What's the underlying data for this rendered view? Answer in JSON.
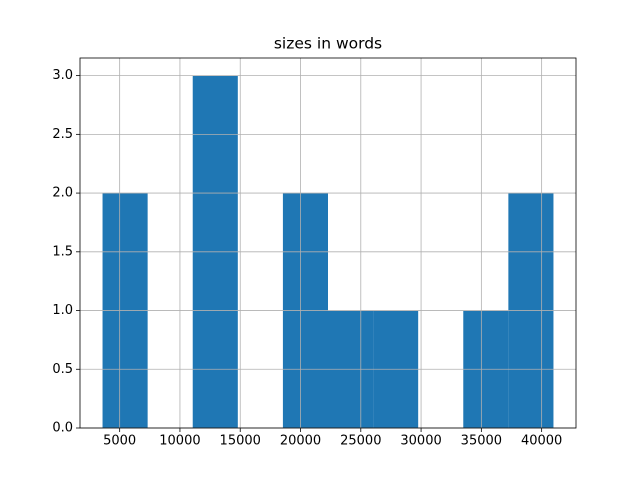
{
  "chart_data": {
    "type": "histogram",
    "title": "sizes in words",
    "bins": [
      3580,
      7320,
      11060,
      14800,
      18540,
      22280,
      26020,
      29760,
      33500,
      37240,
      40980
    ],
    "counts": [
      2,
      0,
      3,
      0,
      2,
      1,
      1,
      0,
      1,
      2
    ],
    "color": "#1f77b4",
    "xlim": [
      1710,
      42850
    ],
    "xticks": [
      5000,
      10000,
      15000,
      20000,
      25000,
      30000,
      35000,
      40000
    ],
    "ylim": [
      0,
      3.15
    ],
    "yticks": [
      {
        "value": 0,
        "label": "0.0"
      },
      0.5,
      {
        "value": 1,
        "label": "1.0"
      },
      1.5,
      {
        "value": 2,
        "label": "2.0"
      },
      2.5,
      {
        "value": 3,
        "label": "3.0"
      }
    ],
    "grid": true
  }
}
